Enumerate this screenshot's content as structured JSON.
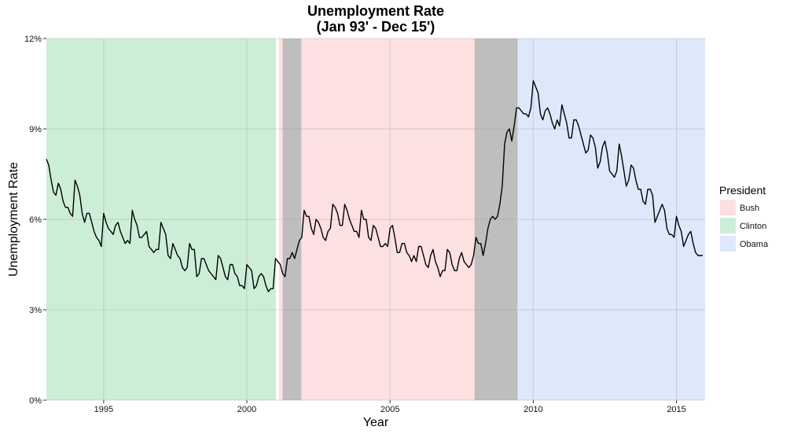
{
  "chart_data": {
    "type": "line",
    "title": "Unemployment Rate",
    "subtitle": "(Jan 93' - Dec 15')",
    "xlabel": "Year",
    "ylabel": "Unemployment Rate",
    "xlim": [
      1993.0,
      2016.0
    ],
    "ylim": [
      0,
      12
    ],
    "x_ticks": [
      1995,
      2000,
      2005,
      2010,
      2015
    ],
    "x_tick_labels": [
      "1995",
      "2000",
      "2005",
      "2010",
      "2015"
    ],
    "y_ticks": [
      0,
      3,
      6,
      9,
      12
    ],
    "y_tick_labels": [
      "0%",
      "3%",
      "6%",
      "9%",
      "12%"
    ],
    "grid": true,
    "legend_position": "right",
    "legend": {
      "title": "President",
      "entries": [
        {
          "label": "Bush",
          "color": "#fde0e0"
        },
        {
          "label": "Clinton",
          "color": "#cdeed6"
        },
        {
          "label": "Obama",
          "color": "#dde8fb"
        }
      ]
    },
    "presidency_bands": [
      {
        "president": "Clinton",
        "start": 1993.0,
        "end": 2001.04,
        "color": "#cdeed6"
      },
      {
        "president": "Bush",
        "start": 2001.04,
        "end": 2009.05,
        "color": "#fde0e0"
      },
      {
        "president": "Obama",
        "start": 2009.05,
        "end": 2016.0,
        "color": "#dde8fb"
      }
    ],
    "recession_bands": [
      {
        "start": 2001.25,
        "end": 2001.9,
        "color": "#bebebe"
      },
      {
        "start": 2007.95,
        "end": 2009.45,
        "color": "#bebebe"
      }
    ],
    "series": [
      {
        "line_color": "#000000",
        "start_year": 1993,
        "start_month": 1,
        "values": [
          8.0,
          7.8,
          7.3,
          6.9,
          6.8,
          7.2,
          7.0,
          6.6,
          6.4,
          6.4,
          6.2,
          6.1,
          7.3,
          7.1,
          6.8,
          6.2,
          5.9,
          6.2,
          6.2,
          5.9,
          5.6,
          5.4,
          5.3,
          5.1,
          6.2,
          5.9,
          5.7,
          5.6,
          5.5,
          5.8,
          5.9,
          5.6,
          5.4,
          5.2,
          5.3,
          5.2,
          6.3,
          6.0,
          5.8,
          5.4,
          5.4,
          5.5,
          5.6,
          5.1,
          5.0,
          4.9,
          5.0,
          5.0,
          5.9,
          5.7,
          5.5,
          4.8,
          4.7,
          5.2,
          5.0,
          4.8,
          4.7,
          4.4,
          4.3,
          4.4,
          5.2,
          5.0,
          5.0,
          4.1,
          4.2,
          4.7,
          4.7,
          4.5,
          4.3,
          4.2,
          4.1,
          4.0,
          4.8,
          4.7,
          4.4,
          4.1,
          4.0,
          4.5,
          4.5,
          4.2,
          4.1,
          3.8,
          3.8,
          3.7,
          4.5,
          4.4,
          4.3,
          3.7,
          3.8,
          4.1,
          4.2,
          4.1,
          3.8,
          3.6,
          3.7,
          3.7,
          4.7,
          4.6,
          4.5,
          4.2,
          4.1,
          4.7,
          4.7,
          4.9,
          4.7,
          5.0,
          5.3,
          5.4,
          6.3,
          6.1,
          6.1,
          5.7,
          5.5,
          6.0,
          5.9,
          5.7,
          5.4,
          5.3,
          5.6,
          5.7,
          6.5,
          6.4,
          6.2,
          5.8,
          5.8,
          6.5,
          6.3,
          6.0,
          5.8,
          5.6,
          5.6,
          5.4,
          6.3,
          6.0,
          6.0,
          5.4,
          5.3,
          5.8,
          5.7,
          5.4,
          5.1,
          5.1,
          5.2,
          5.1,
          5.7,
          5.8,
          5.4,
          4.9,
          4.9,
          5.2,
          5.2,
          4.9,
          4.8,
          4.6,
          4.8,
          4.6,
          5.1,
          5.1,
          4.8,
          4.5,
          4.4,
          4.8,
          5.0,
          4.6,
          4.4,
          4.1,
          4.3,
          4.3,
          5.0,
          4.9,
          4.5,
          4.3,
          4.3,
          4.7,
          4.9,
          4.6,
          4.5,
          4.4,
          4.5,
          4.8,
          5.4,
          5.2,
          5.2,
          4.8,
          5.2,
          5.7,
          6.0,
          6.1,
          6.0,
          6.1,
          6.5,
          7.1,
          8.5,
          8.9,
          9.0,
          8.6,
          9.1,
          9.7,
          9.7,
          9.6,
          9.5,
          9.5,
          9.4,
          9.7,
          10.6,
          10.4,
          10.2,
          9.5,
          9.3,
          9.6,
          9.7,
          9.5,
          9.2,
          9.0,
          9.3,
          9.1,
          9.8,
          9.5,
          9.2,
          8.7,
          8.7,
          9.3,
          9.3,
          9.1,
          8.8,
          8.5,
          8.2,
          8.3,
          8.8,
          8.7,
          8.4,
          7.7,
          7.9,
          8.4,
          8.6,
          8.2,
          7.6,
          7.5,
          7.4,
          7.6,
          8.5,
          8.1,
          7.6,
          7.1,
          7.3,
          7.8,
          7.7,
          7.3,
          7.0,
          7.0,
          6.6,
          6.5,
          7.0,
          7.0,
          6.8,
          5.9,
          6.1,
          6.3,
          6.5,
          6.3,
          5.7,
          5.5,
          5.5,
          5.4,
          6.1,
          5.8,
          5.6,
          5.1,
          5.3,
          5.5,
          5.6,
          5.2,
          4.9,
          4.8,
          4.8,
          4.8
        ]
      }
    ]
  }
}
